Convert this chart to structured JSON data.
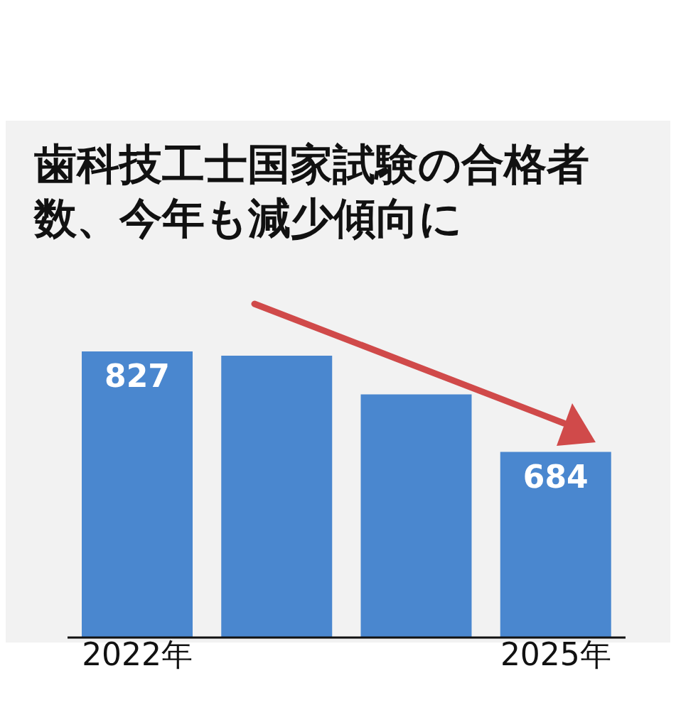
{
  "chart_data": {
    "type": "bar",
    "title": "歯科技工士国家試験の合格者数、今年も減少傾向に",
    "categories": [
      "2022年",
      null,
      null,
      "2025年"
    ],
    "values": [
      827,
      821,
      766,
      684
    ],
    "value_labels": [
      "827",
      null,
      null,
      "684"
    ],
    "color": "#4a87cf",
    "ylim": [
      420,
      830
    ],
    "tick_labels": "x",
    "grid": false,
    "legend": false
  }
}
